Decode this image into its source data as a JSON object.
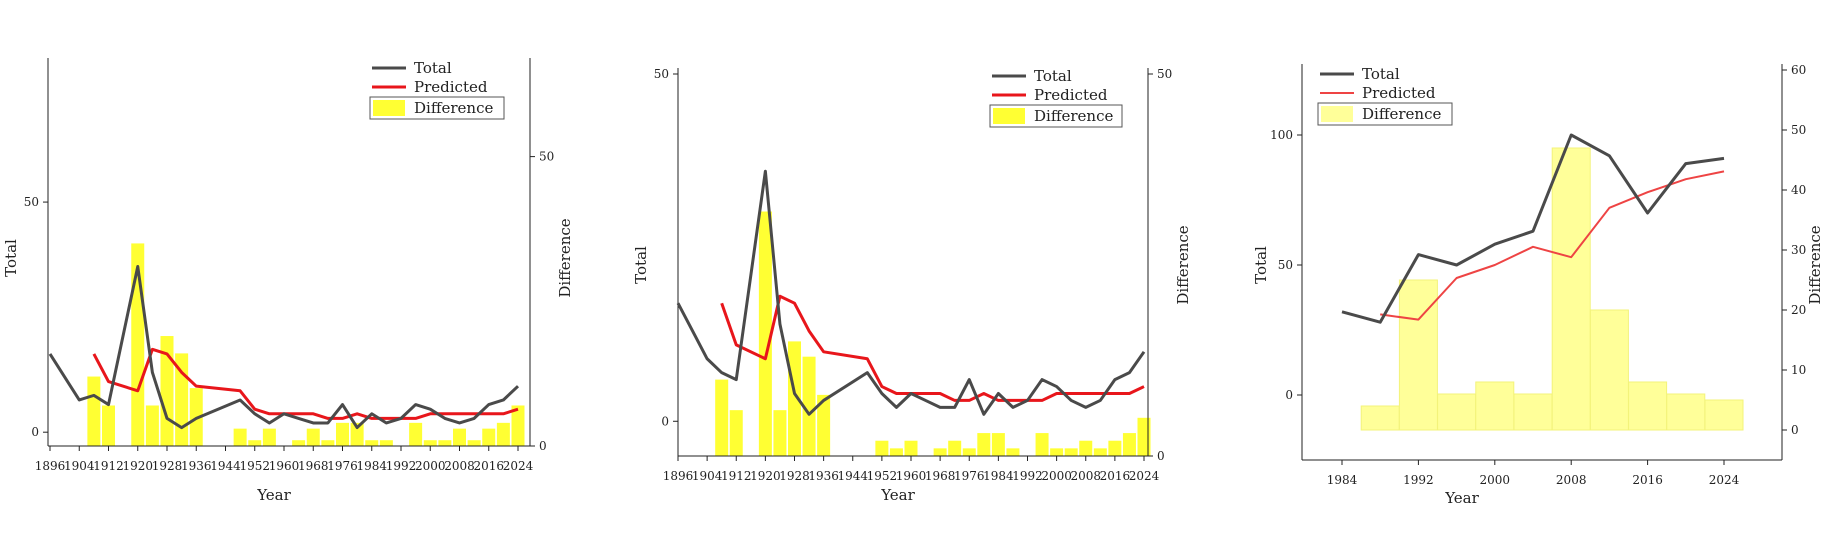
{
  "chart_data": [
    {
      "type": "line+bar",
      "xlabel": "Year",
      "ylabel": "Total",
      "y2label": "Difference",
      "xlim": [
        1896,
        2024
      ],
      "xticks": [
        1896,
        1904,
        1912,
        1920,
        1928,
        1936,
        1944,
        1952,
        1960,
        1968,
        1976,
        1984,
        1992,
        2000,
        2008,
        2016,
        2024
      ],
      "ylim": [
        -3,
        80
      ],
      "yticks": [
        0,
        50
      ],
      "y2lim": [
        0,
        66
      ],
      "y2ticks": [
        0,
        50
      ],
      "legend": {
        "position": "top-right",
        "entries": [
          "Total",
          "Predicted",
          "Difference"
        ]
      },
      "colors": {
        "total": "#4a4a4a",
        "predicted": "#e8161b",
        "difference": "#ffff33"
      },
      "total": {
        "name": "Total",
        "x": [
          1896,
          1900,
          1904,
          1908,
          1912,
          1920,
          1924,
          1928,
          1932,
          1936,
          1948,
          1952,
          1956,
          1960,
          1964,
          1968,
          1972,
          1976,
          1980,
          1984,
          1988,
          1992,
          1996,
          2000,
          2004,
          2008,
          2012,
          2016,
          2020,
          2024
        ],
        "y": [
          17,
          12,
          7,
          8,
          6,
          36,
          13,
          3,
          1,
          3,
          7,
          4,
          2,
          4,
          3,
          2,
          2,
          6,
          1,
          4,
          2,
          3,
          6,
          5,
          3,
          2,
          3,
          6,
          7,
          10
        ]
      },
      "predicted": {
        "name": "Predicted",
        "x": [
          1908,
          1912,
          1920,
          1924,
          1928,
          1932,
          1936,
          1948,
          1952,
          1956,
          1960,
          1964,
          1968,
          1972,
          1976,
          1980,
          1984,
          1988,
          1992,
          1996,
          2000,
          2004,
          2008,
          2012,
          2016,
          2020,
          2024
        ],
        "y": [
          17,
          11,
          9,
          18,
          17,
          13,
          10,
          9,
          5,
          4,
          4,
          4,
          4,
          3,
          3,
          4,
          3,
          3,
          3,
          3,
          4,
          4,
          4,
          4,
          4,
          4,
          5
        ]
      },
      "difference": {
        "name": "Difference",
        "x": [
          1908,
          1912,
          1920,
          1924,
          1928,
          1932,
          1936,
          1948,
          1952,
          1956,
          1964,
          1968,
          1972,
          1976,
          1980,
          1984,
          1988,
          1996,
          2000,
          2004,
          2008,
          2012,
          2016,
          2020,
          2024
        ],
        "y": [
          12,
          7,
          35,
          7,
          19,
          16,
          10,
          3,
          1,
          3,
          1,
          3,
          1,
          4,
          4,
          1,
          1,
          4,
          1,
          1,
          3,
          1,
          3,
          4,
          7
        ]
      }
    },
    {
      "type": "line+bar",
      "xlabel": "Year",
      "ylabel": "Total",
      "y2label": "Difference",
      "xlim": [
        1896,
        2024
      ],
      "xticks": [
        1896,
        1904,
        1912,
        1920,
        1928,
        1936,
        1944,
        1952,
        1960,
        1968,
        1976,
        1984,
        1992,
        2000,
        2008,
        2016,
        2024
      ],
      "ylim": [
        -5,
        50
      ],
      "yticks": [
        0,
        50
      ],
      "y2lim": [
        0,
        50
      ],
      "y2ticks": [
        0,
        50
      ],
      "legend": {
        "position": "top-right",
        "entries": [
          "Total",
          "Predicted",
          "Difference"
        ]
      },
      "colors": {
        "total": "#4a4a4a",
        "predicted": "#e8161b",
        "difference": "#ffff33"
      },
      "total": {
        "name": "Total",
        "x": [
          1896,
          1900,
          1904,
          1908,
          1912,
          1920,
          1924,
          1928,
          1932,
          1936,
          1948,
          1952,
          1956,
          1960,
          1964,
          1968,
          1972,
          1976,
          1980,
          1984,
          1988,
          1992,
          1996,
          2000,
          2004,
          2008,
          2012,
          2016,
          2020,
          2024
        ],
        "y": [
          17,
          13,
          9,
          7,
          6,
          36,
          14,
          4,
          1,
          3,
          7,
          4,
          2,
          4,
          3,
          2,
          2,
          6,
          1,
          4,
          2,
          3,
          6,
          5,
          3,
          2,
          3,
          6,
          7,
          10
        ]
      },
      "predicted": {
        "name": "Predicted",
        "x": [
          1908,
          1912,
          1920,
          1924,
          1928,
          1932,
          1936,
          1948,
          1952,
          1956,
          1960,
          1964,
          1968,
          1972,
          1976,
          1980,
          1984,
          1988,
          1992,
          1996,
          2000,
          2004,
          2008,
          2012,
          2016,
          2020,
          2024
        ],
        "y": [
          17,
          11,
          9,
          18,
          17,
          13,
          10,
          9,
          5,
          4,
          4,
          4,
          4,
          3,
          3,
          4,
          3,
          3,
          3,
          3,
          4,
          4,
          4,
          4,
          4,
          4,
          5
        ]
      },
      "difference": {
        "name": "Difference",
        "x": [
          1908,
          1912,
          1920,
          1924,
          1928,
          1932,
          1936,
          1952,
          1956,
          1960,
          1968,
          1972,
          1976,
          1980,
          1984,
          1988,
          1996,
          2000,
          2004,
          2008,
          2012,
          2016,
          2020,
          2024
        ],
        "y": [
          10,
          6,
          32,
          6,
          15,
          13,
          8,
          2,
          1,
          2,
          1,
          2,
          1,
          3,
          3,
          1,
          3,
          1,
          1,
          2,
          1,
          2,
          3,
          5
        ]
      }
    },
    {
      "type": "line+bar",
      "xlabel": "Year",
      "ylabel": "Total",
      "y2label": "Difference",
      "xlim": [
        1980,
        2030
      ],
      "xticks": [
        1984,
        1992,
        2000,
        2008,
        2016,
        2024
      ],
      "ylim": [
        -25,
        125
      ],
      "yticks": [
        0,
        50,
        100
      ],
      "y2lim": [
        -5,
        60
      ],
      "y2ticks": [
        0,
        10,
        20,
        30,
        40,
        50,
        60
      ],
      "legend": {
        "position": "top-left",
        "entries": [
          "Total",
          "Predicted",
          "Difference"
        ]
      },
      "colors": {
        "total": "#4a4a4a",
        "predicted": "#ee4444",
        "difference": "#ffff99"
      },
      "total": {
        "name": "Total",
        "x": [
          1984,
          1988,
          1992,
          1996,
          2000,
          2004,
          2008,
          2012,
          2016,
          2020,
          2024
        ],
        "y": [
          32,
          28,
          54,
          50,
          58,
          63,
          100,
          92,
          70,
          89,
          91
        ]
      },
      "predicted": {
        "name": "Predicted",
        "x": [
          1988,
          1992,
          1996,
          2000,
          2004,
          2008,
          2012,
          2016,
          2020,
          2024
        ],
        "y": [
          31,
          29,
          45,
          50,
          57,
          53,
          72,
          78,
          83,
          86
        ]
      },
      "difference": {
        "name": "Difference",
        "x": [
          1988,
          1992,
          1996,
          2000,
          2004,
          2008,
          2012,
          2016,
          2020,
          2024
        ],
        "y": [
          4,
          25,
          6,
          8,
          6,
          47,
          20,
          8,
          6,
          5
        ]
      }
    }
  ]
}
